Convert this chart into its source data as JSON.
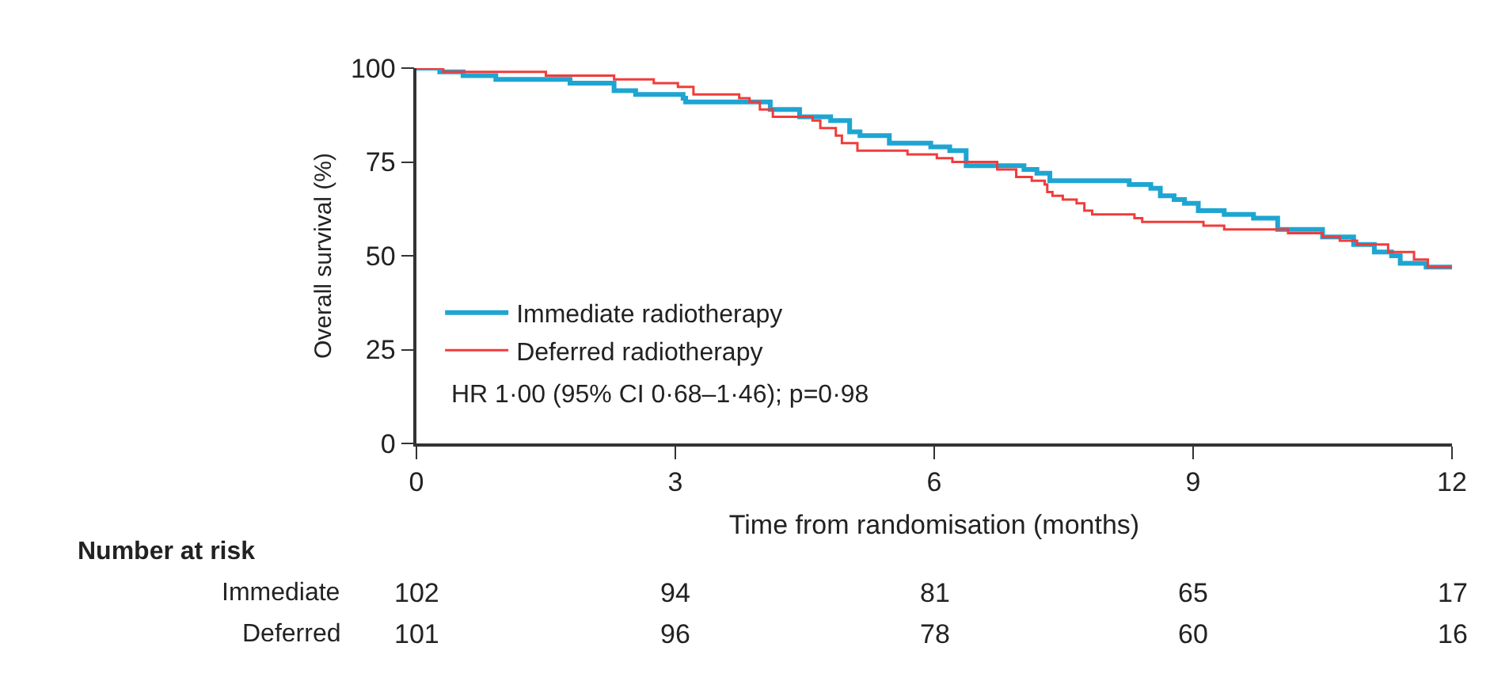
{
  "chart_data": {
    "type": "step",
    "xlabel": "Time from randomisation (months)",
    "ylabel": "Overall survival (%)",
    "xlim": [
      0,
      12
    ],
    "xticks": [
      0,
      3,
      6,
      9,
      12
    ],
    "ylim": [
      0,
      100
    ],
    "yticks": [
      0,
      25,
      50,
      75,
      100
    ],
    "legend": "bottom left",
    "marker": "none",
    "line_style": "solid",
    "series": [
      {
        "name": "Immediate radiotherapy",
        "color": "#1ea5d2",
        "x": [
          0,
          0.27,
          0.54,
          0.92,
          1.78,
          2.29,
          2.54,
          3.09,
          3.12,
          4.1,
          4.44,
          4.68,
          4.8,
          5.02,
          5.14,
          5.48,
          5.96,
          6.0,
          6.18,
          6.37,
          6.79,
          7.04,
          7.19,
          7.34,
          8.26,
          8.51,
          8.62,
          8.78,
          8.9,
          9.06,
          9.36,
          9.7,
          9.98,
          10.5,
          10.86,
          11.1,
          11.3,
          11.4,
          11.7,
          12
        ],
        "values": [
          100,
          99,
          98,
          97,
          96,
          94,
          93,
          92,
          91,
          89,
          87,
          87,
          86,
          83,
          82,
          80,
          79,
          79,
          78,
          74,
          74,
          73,
          72,
          70,
          69,
          68,
          66,
          65,
          64,
          62,
          61,
          60,
          57,
          55,
          53,
          51,
          50,
          48,
          47,
          47
        ]
      },
      {
        "name": "Deferred radiotherapy",
        "color": "#f03c3c",
        "x": [
          0,
          0.31,
          1.5,
          2.09,
          2.29,
          2.75,
          3.03,
          3.21,
          3.74,
          3.86,
          3.98,
          4.13,
          4.59,
          4.68,
          4.86,
          4.93,
          5.11,
          5.69,
          6.03,
          6.21,
          6.73,
          6.95,
          7.13,
          7.28,
          7.31,
          7.37,
          7.49,
          7.65,
          7.74,
          7.83,
          8.32,
          8.41,
          9.12,
          9.36,
          10.1,
          10.5,
          10.7,
          10.9,
          11.26,
          11.56,
          11.72,
          12
        ],
        "values": [
          100,
          99,
          98,
          98,
          97,
          96,
          95,
          93,
          92,
          91,
          89,
          87,
          86,
          84,
          82,
          80,
          78,
          77,
          76,
          75,
          73,
          71,
          70,
          69,
          67,
          66,
          65,
          64,
          62,
          61,
          60,
          59,
          58,
          57,
          56,
          55,
          54,
          53,
          51,
          49,
          47,
          47
        ]
      }
    ],
    "annotations": [
      "HR 1·00 (95% CI 0·68–1·46); p=0·98",
      "Number at risk",
      "Immediate",
      "Deferred",
      "102",
      "94",
      "81",
      "65",
      "17",
      "101",
      "96",
      "78",
      "60",
      "16"
    ]
  }
}
